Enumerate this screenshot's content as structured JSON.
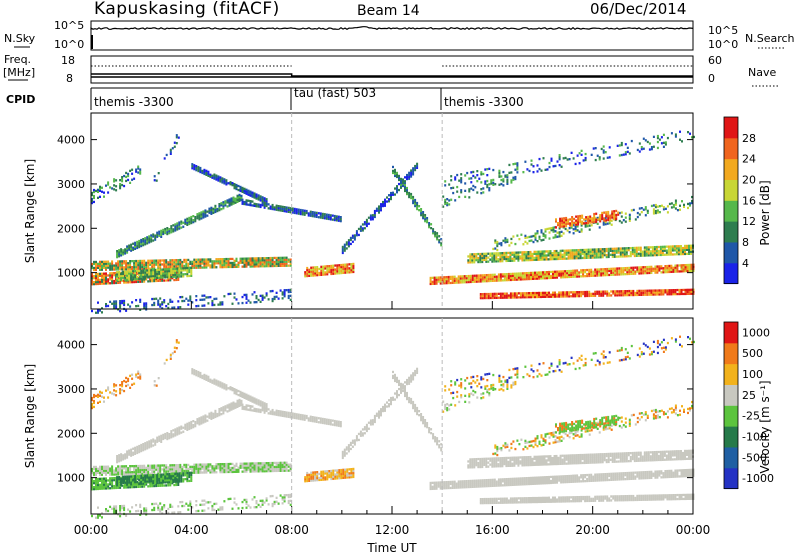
{
  "header": {
    "station": "Kapuskasing (fitACF)",
    "beam": "Beam 14",
    "date": "06/Dec/2014"
  },
  "noise_panel": {
    "left_label": "N.Sky",
    "right_label": "N.Search",
    "left_ticks": [
      "10^5",
      "10^0"
    ],
    "right_ticks": [
      "10^5",
      "10^0"
    ]
  },
  "freq_panel": {
    "left_label_line1": "Freq.",
    "left_label_line2": "[MHz]",
    "right_label": "Nave",
    "left_ticks": [
      "18",
      "8"
    ],
    "right_ticks": [
      "60",
      "0"
    ]
  },
  "cpid_panel": {
    "label": "CPID",
    "segments": [
      {
        "name": "themis -3300",
        "start_hour": 0,
        "end_hour": 8
      },
      {
        "name": "tau (fast) 503",
        "start_hour": 8,
        "end_hour": 14
      },
      {
        "name": "themis -3300",
        "start_hour": 14,
        "end_hour": 24
      }
    ]
  },
  "chart_data": [
    {
      "type": "heatmap",
      "name": "power",
      "ylabel": "Slant Range [km]",
      "yticks": [
        1000,
        2000,
        3000,
        4000
      ],
      "ylim": [
        180,
        4600
      ],
      "xlim": [
        0,
        24
      ],
      "colorbar_label": "Power [dB]",
      "colorbar_ticks": [
        "28",
        "24",
        "20",
        "16",
        "12",
        "8",
        "4"
      ],
      "colorbar_colors": [
        "#1a22e8",
        "#1f57a8",
        "#2e7d4f",
        "#56b84b",
        "#c8d635",
        "#f2a91f",
        "#f0651e",
        "#e01616"
      ]
    },
    {
      "type": "heatmap",
      "name": "velocity",
      "ylabel": "Slant Range [km]",
      "yticks": [
        1000,
        2000,
        3000,
        4000
      ],
      "ylim": [
        180,
        4600
      ],
      "xlim": [
        0,
        24
      ],
      "xlabel": "Time UT",
      "xticks": [
        "00:00",
        "04:00",
        "08:00",
        "12:00",
        "16:00",
        "20:00",
        "00:00"
      ],
      "colorbar_label": "Velocity [m s⁻¹]",
      "colorbar_ticks": [
        "1000",
        "500",
        "100",
        "25",
        "-25",
        "-100",
        "-500",
        "-1000"
      ],
      "colorbar_colors": [
        "#2432c4",
        "#1f5fa3",
        "#267a4a",
        "#5cc43e",
        "#c8c8c0",
        "#f2b21c",
        "#f07a1a",
        "#e01616"
      ]
    }
  ]
}
